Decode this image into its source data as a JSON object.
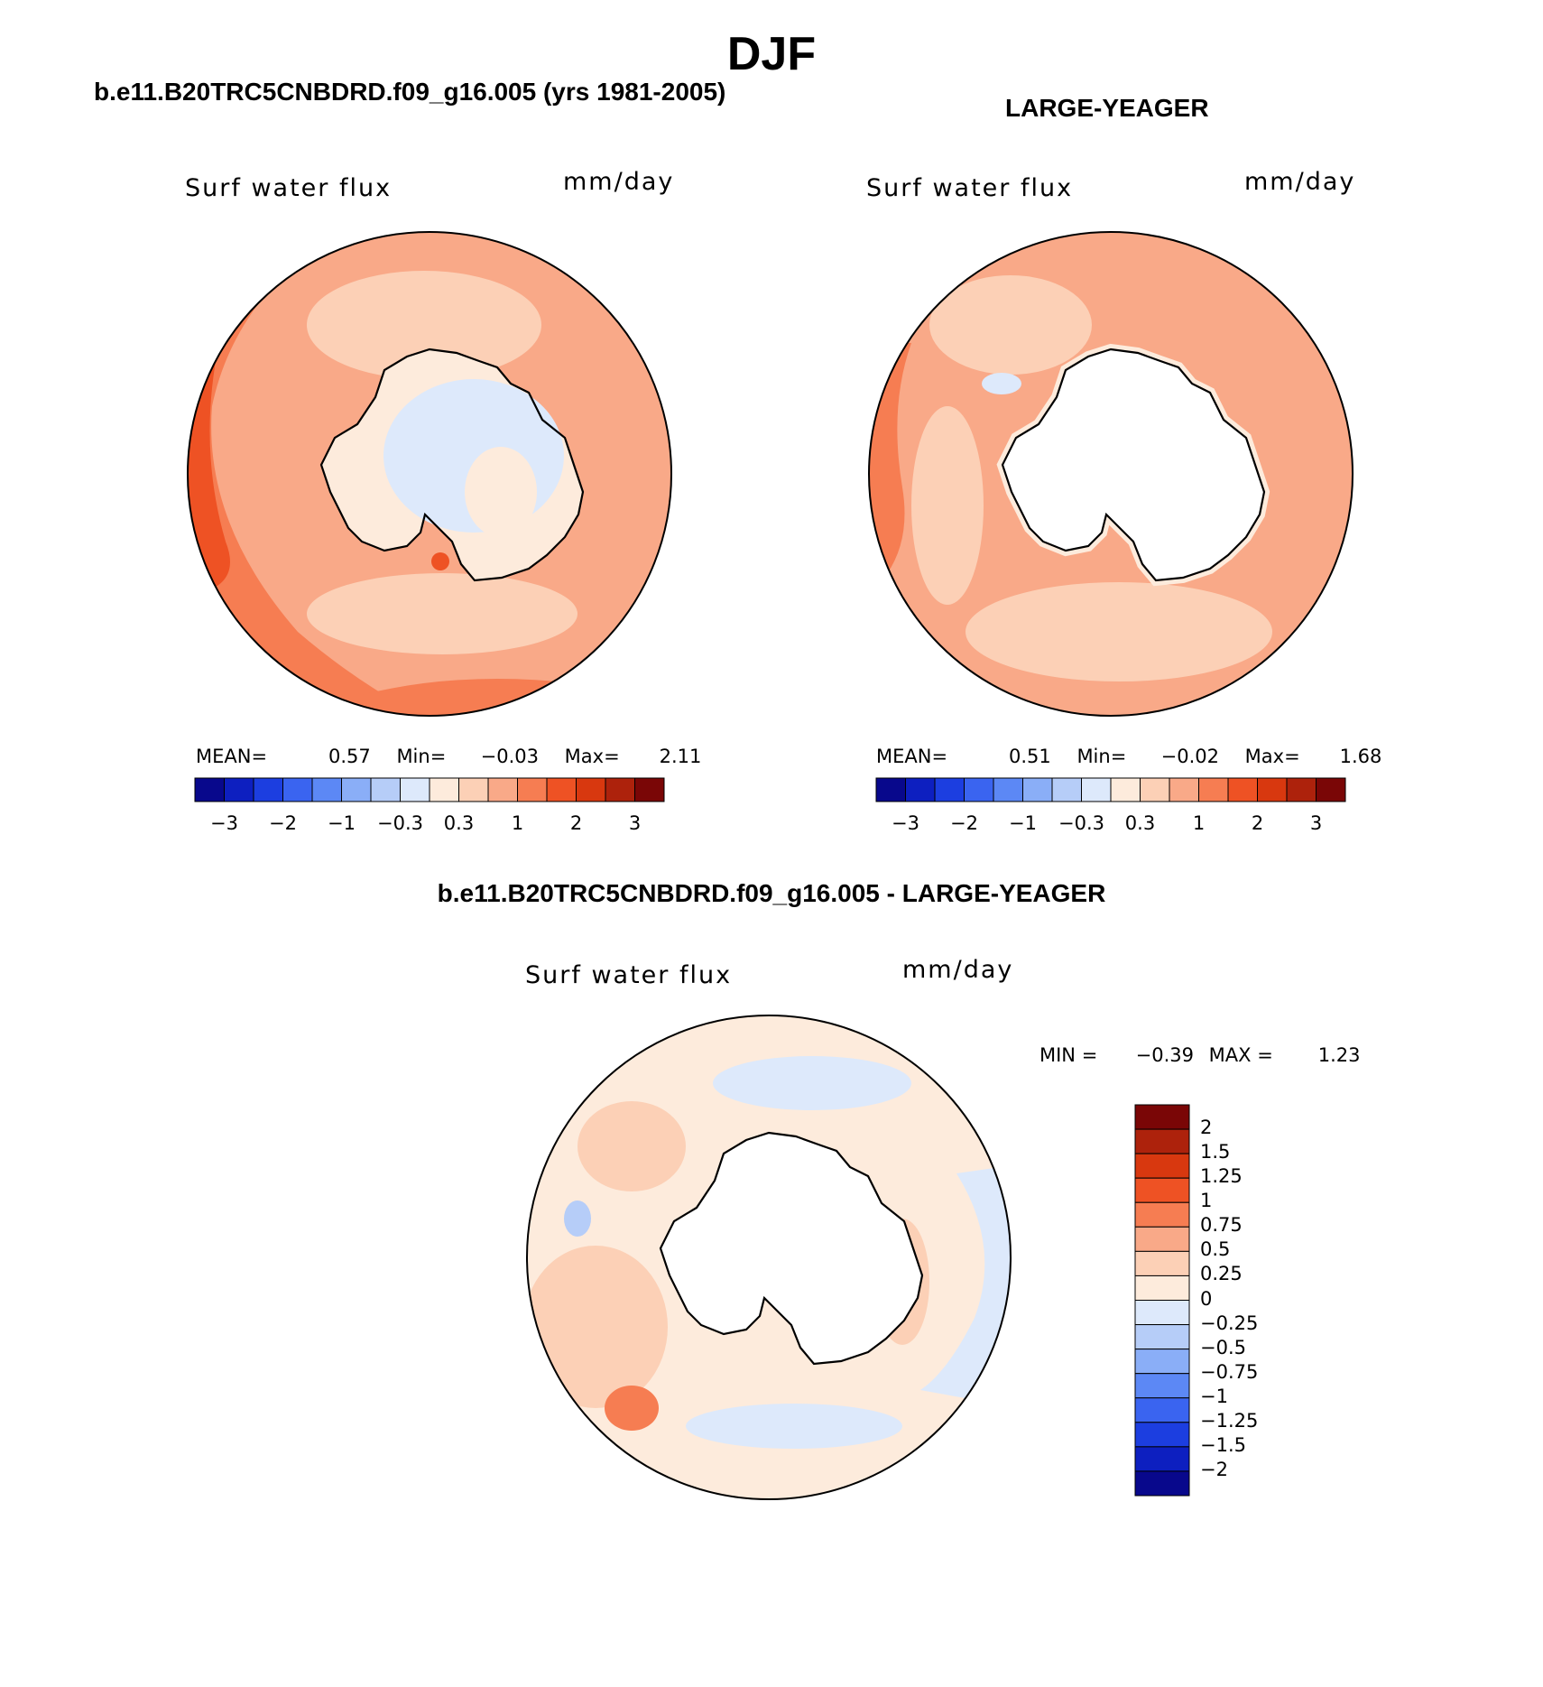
{
  "title": "DJF",
  "panels": {
    "top_left": {
      "case_title": "b.e11.B20TRC5CNBDRD.f09_g16.005 (yrs 1981-2005)",
      "variable": "Surf water flux",
      "units": "mm/day",
      "stats": {
        "mean_label": "MEAN=",
        "mean": "0.57",
        "min_label": "Min=",
        "min": "−0.03",
        "max_label": "Max=",
        "max": "2.11"
      }
    },
    "top_right": {
      "case_title": "LARGE-YEAGER",
      "variable": "Surf water flux",
      "units": "mm/day",
      "stats": {
        "mean_label": "MEAN=",
        "mean": "0.51",
        "min_label": "Min=",
        "min": "−0.02",
        "max_label": "Max=",
        "max": "1.68"
      }
    },
    "bottom": {
      "case_title": "b.e11.B20TRC5CNBDRD.f09_g16.005 - LARGE-YEAGER",
      "variable": "Surf water flux",
      "units": "mm/day",
      "min_label": "MIN =",
      "min": "−0.39",
      "max_label": "MAX =",
      "max": "1.23"
    }
  },
  "colorbar_abs": {
    "colors": [
      "#08088c",
      "#0d1fc0",
      "#1c3ee0",
      "#3a64f0",
      "#5c88f5",
      "#8aaef7",
      "#b6cdf8",
      "#dde9fb",
      "#fdebdc",
      "#fcd0b6",
      "#f9a988",
      "#f67d52",
      "#ee5224",
      "#d8380f",
      "#ad220c",
      "#7a0606"
    ],
    "ticks": [
      "−3",
      "−2",
      "−1",
      "−0.3",
      "0.3",
      "1",
      "2",
      "3"
    ]
  },
  "colorbar_diff": {
    "colors_top_to_bottom": [
      "#7a0606",
      "#ad220c",
      "#d8380f",
      "#ee5224",
      "#f67d52",
      "#f9a988",
      "#fcd0b6",
      "#fdebdc",
      "#dde9fb",
      "#b6cdf8",
      "#8aaef7",
      "#5c88f5",
      "#3a64f0",
      "#1c3ee0",
      "#0d1fc0",
      "#08088c"
    ],
    "labels": [
      "2",
      "1.5",
      "1.25",
      "1",
      "0.75",
      "0.5",
      "0.25",
      "0",
      "−0.25",
      "−0.5",
      "−0.75",
      "−1",
      "−1.25",
      "−1.5",
      "−2"
    ]
  }
}
